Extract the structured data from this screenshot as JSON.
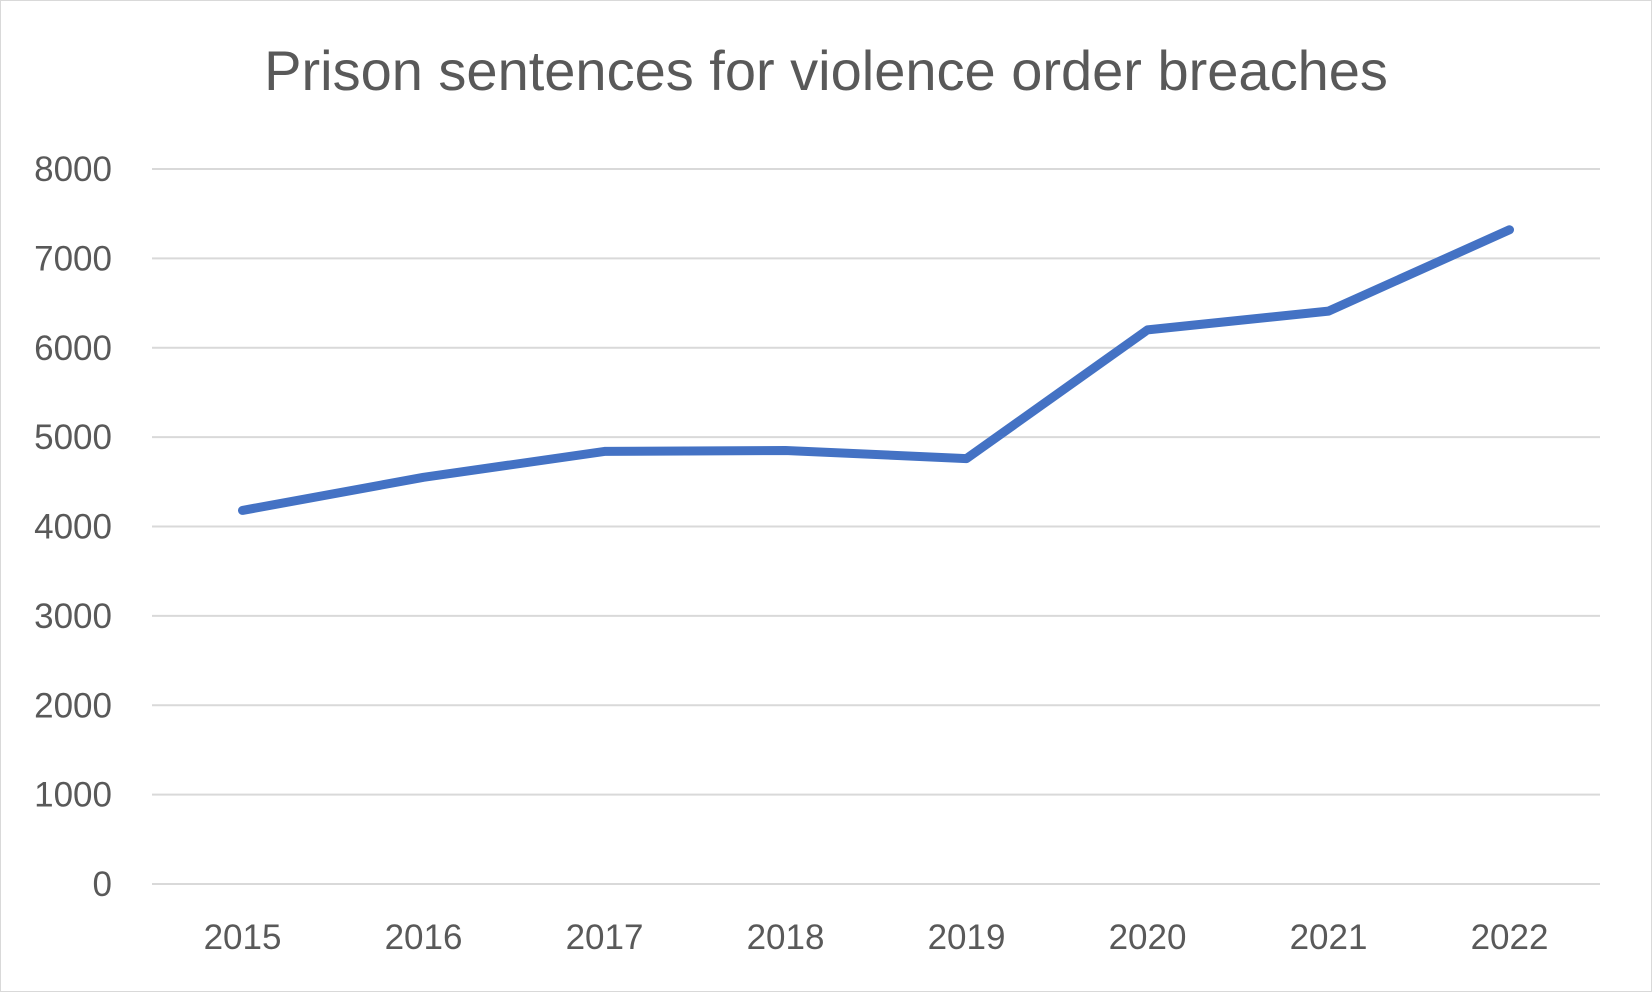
{
  "chart_data": {
    "type": "line",
    "title": "Prison sentences for violence order breaches",
    "xlabel": "",
    "ylabel": "",
    "categories": [
      "2015",
      "2016",
      "2017",
      "2018",
      "2019",
      "2020",
      "2021",
      "2022"
    ],
    "series": [
      {
        "values": [
          4180,
          4550,
          4840,
          4850,
          4760,
          6200,
          6410,
          7320
        ],
        "color": "#4472c4"
      }
    ],
    "ylim": [
      0,
      8000
    ],
    "yticks": [
      "0",
      "1000",
      "2000",
      "3000",
      "4000",
      "5000",
      "6000",
      "7000",
      "8000"
    ],
    "grid": true,
    "legend": "none"
  }
}
